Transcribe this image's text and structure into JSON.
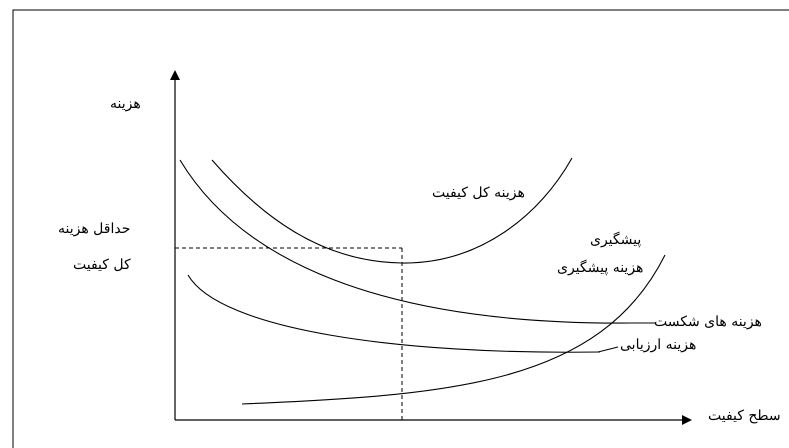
{
  "axis": {
    "y_label": "هزینه",
    "x_label": "سطح کیفیت"
  },
  "min_cost_label": {
    "line1": "حداقل هزینه",
    "line2": "کل کیفیت"
  },
  "curves": {
    "total_quality_cost": "هزینه کل کیفیت",
    "prevention_short": "پیشگیری",
    "prevention_cost": "هزینه پیشگیری",
    "failure_cost": "هزینه های شکست",
    "appraisal_cost": "هزینه ارزیابی"
  }
}
